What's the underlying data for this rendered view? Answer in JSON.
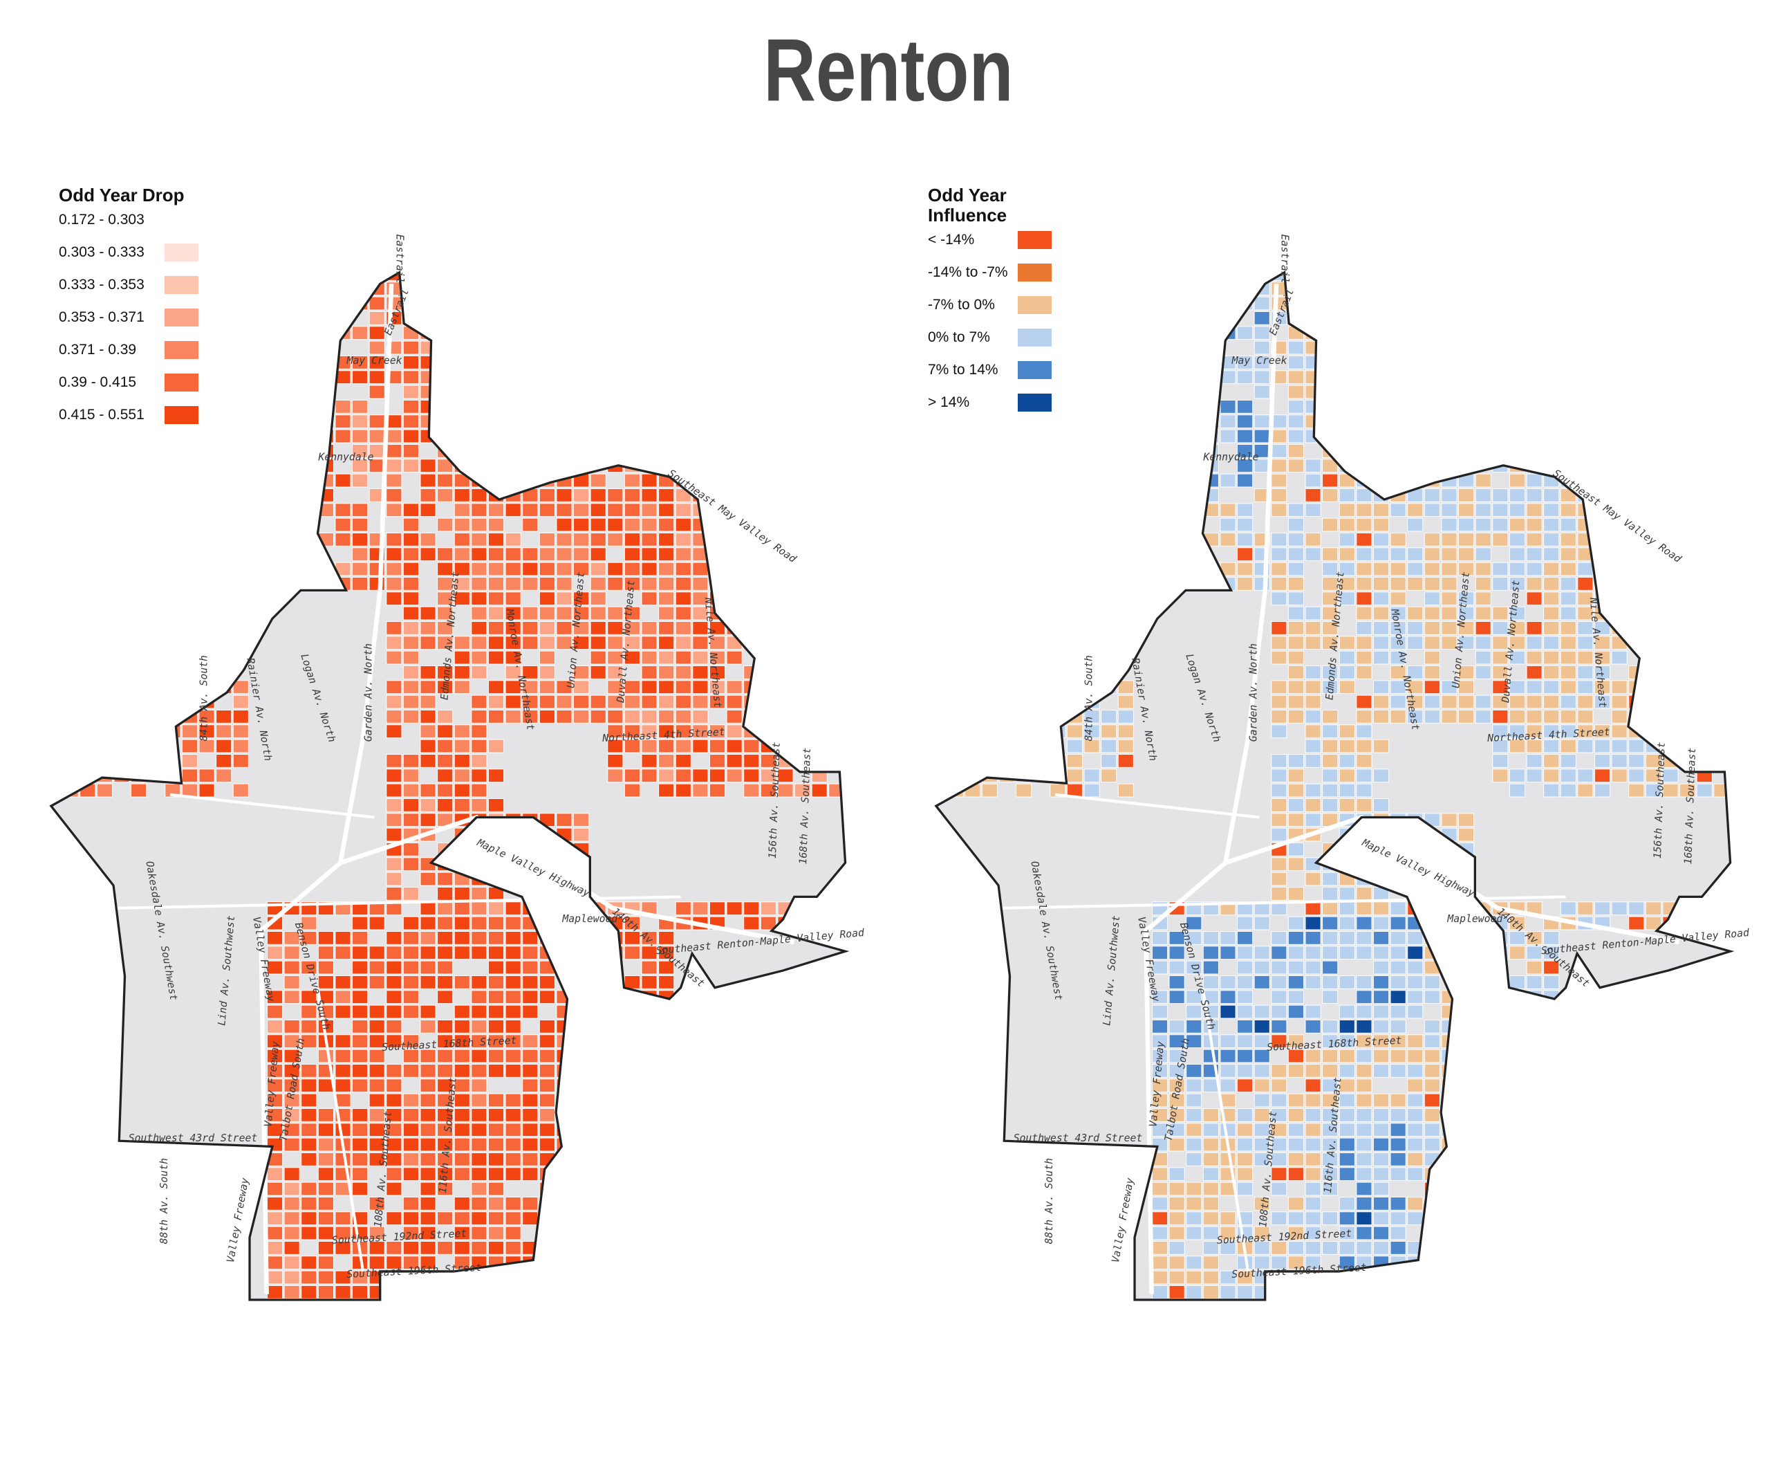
{
  "title": "Renton",
  "place_labels": [
    "Eastrail",
    "May Creek",
    "Kennydale",
    "Southeast May Valley Road",
    "84th Av. South",
    "Rainier Av. North",
    "Logan Av. North",
    "Garden Av. North",
    "Edmonds Av. Northeast",
    "Monroe Av. Northeast",
    "Union Av. Northeast",
    "Duvall Av. Northeast",
    "Nile Av. Northeast",
    "Northeast 4th Street",
    "156th Av. Southeast",
    "168th Av. Southeast",
    "Maple Valley Highway",
    "Maplewood",
    "140th Av. Southeast",
    "Southeast Renton-Maple Valley Road",
    "Oakesdale Av. Southwest",
    "Lind Av. Southwest",
    "Valley Freeway",
    "Benson Drive South",
    "Talbot Road South",
    "Southeast 168th Street",
    "Southwest 43rd Street",
    "88th Av. South",
    "108th Av. Southeast",
    "116th Av. Southeast",
    "Southeast 192nd Street",
    "Southeast 196th Street"
  ],
  "maps": [
    {
      "legend": {
        "title": "Odd Year Drop",
        "items": [
          {
            "label": "0.172 - 0.303",
            "color": "#ffffff"
          },
          {
            "label": "0.303 - 0.333",
            "color": "#fde1d7"
          },
          {
            "label": "0.333 - 0.353",
            "color": "#fcc3ad"
          },
          {
            "label": "0.353 - 0.371",
            "color": "#fba486"
          },
          {
            "label": "0.371 - 0.39",
            "color": "#f9865f"
          },
          {
            "label": "0.39 - 0.415",
            "color": "#f66638"
          },
          {
            "label": "0.415 - 0.551",
            "color": "#f34512"
          }
        ]
      }
    },
    {
      "legend": {
        "title": "Odd Year Influence",
        "items": [
          {
            "label": "< -14%",
            "color": "#f2501c"
          },
          {
            "label": "-14% to -7%",
            "color": "#ea7831"
          },
          {
            "label": "-7% to 0%",
            "color": "#f0c292"
          },
          {
            "label": "0% to 7%",
            "color": "#b7d1ef"
          },
          {
            "label": "7% to 14%",
            "color": "#4b86cc"
          },
          {
            "label": "> 14%",
            "color": "#0d4a9a"
          }
        ]
      }
    }
  ]
}
